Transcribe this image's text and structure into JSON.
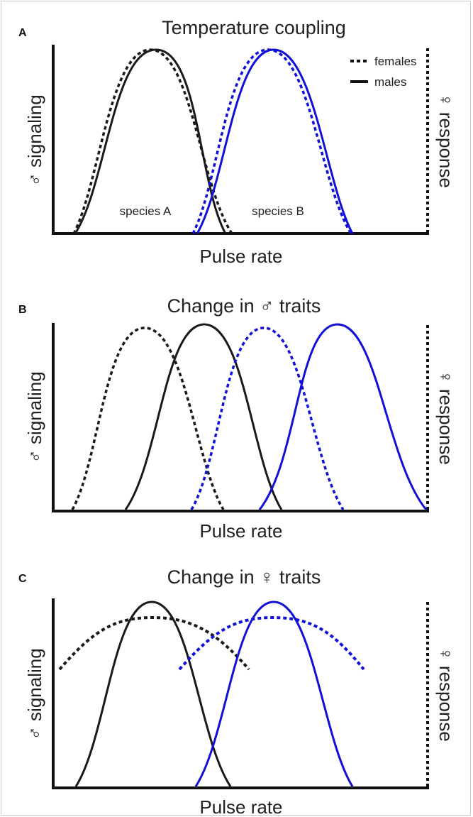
{
  "panels": [
    {
      "letter": "A",
      "title": "Temperature coupling",
      "xlabel": "Pulse rate",
      "ylabel_left": "♂ signaling",
      "ylabel_right": "♀ response",
      "species_labels": [
        "species A",
        "species B"
      ]
    },
    {
      "letter": "B",
      "title": "Change in ♂ traits",
      "xlabel": "Pulse rate",
      "ylabel_left": "♂ signaling",
      "ylabel_right": "♀ response"
    },
    {
      "letter": "C",
      "title": "Change in ♀ traits",
      "xlabel": "Pulse rate",
      "ylabel_left": "♂ signaling",
      "ylabel_right": "♀ response"
    }
  ],
  "legend": {
    "females_label": "females",
    "males_label": "males"
  },
  "colors": {
    "species_a": "#1a1a1a",
    "species_b": "#1010d8",
    "axis": "#111111"
  }
}
